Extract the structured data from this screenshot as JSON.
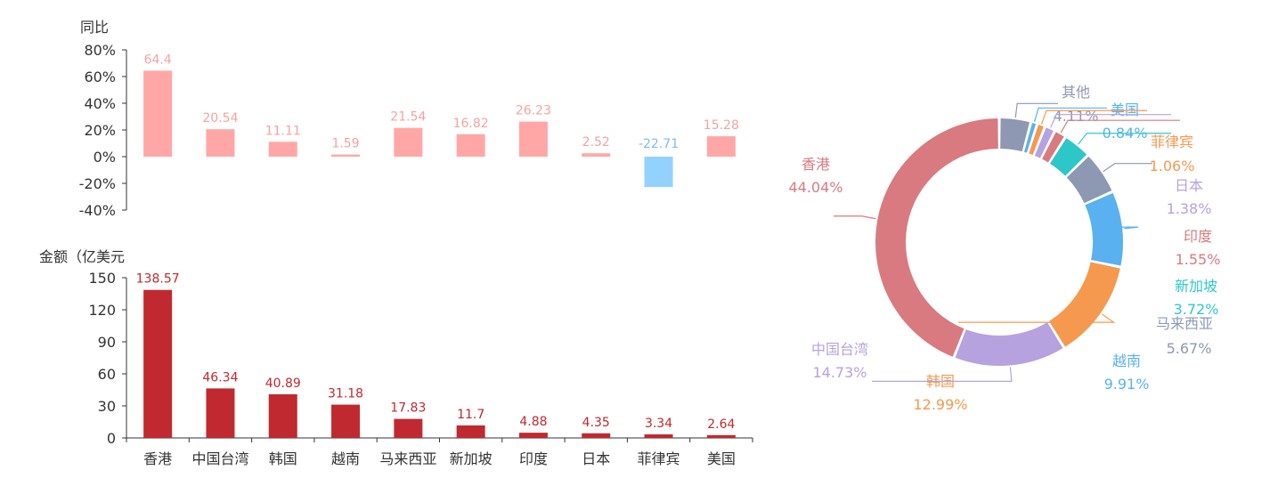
{
  "chart_data": [
    {
      "type": "bar",
      "ylabel": "同比",
      "ylim": [
        -40,
        80
      ],
      "y_ticks": [
        "80%",
        "60%",
        "40%",
        "20%",
        "0%",
        "-20%",
        "-40%"
      ],
      "categories": [
        "香港",
        "中国台湾",
        "韩国",
        "越南",
        "马来西亚",
        "新加坡",
        "印度",
        "日本",
        "菲律宾",
        "美国"
      ],
      "values": [
        64.4,
        20.54,
        11.11,
        1.59,
        21.54,
        16.82,
        26.23,
        2.52,
        -22.71,
        15.28
      ],
      "data_labels": [
        "64.4",
        "20.54",
        "11.11",
        "1.59",
        "21.54",
        "16.82",
        "26.23",
        "2.52",
        "-22.71",
        "15.28"
      ],
      "colors": {
        "positive": "#ffa7a7",
        "negative": "#93d2ff",
        "positive_label": "#f4a3a3",
        "negative_label": "#7dbbef"
      }
    },
    {
      "type": "bar",
      "ylabel": "金额（亿美元",
      "ylim": [
        0,
        150
      ],
      "y_ticks": [
        "150",
        "120",
        "90",
        "60",
        "30",
        "0"
      ],
      "categories": [
        "香港",
        "中国台湾",
        "韩国",
        "越南",
        "马来西亚",
        "新加坡",
        "印度",
        "日本",
        "菲律宾",
        "美国"
      ],
      "values": [
        138.57,
        46.34,
        40.89,
        31.18,
        17.83,
        11.7,
        4.88,
        4.35,
        3.34,
        2.64
      ],
      "data_labels": [
        "138.57",
        "46.34",
        "40.89",
        "31.18",
        "17.83",
        "11.7",
        "4.88",
        "4.35",
        "3.34",
        "2.64"
      ],
      "colors": {
        "bar": "#c0292f",
        "label": "#c0292f"
      }
    },
    {
      "type": "pie",
      "donut": true,
      "slices": [
        {
          "name": "其他",
          "value": 4.11,
          "label": "4.11%",
          "color": "#8e98b3"
        },
        {
          "name": "美国",
          "value": 0.84,
          "label": "0.84%",
          "color": "#5ab1ef"
        },
        {
          "name": "菲律宾",
          "value": 1.06,
          "label": "1.06%",
          "color": "#f5994e"
        },
        {
          "name": "日本",
          "value": 1.38,
          "label": "1.38%",
          "color": "#b6a2de"
        },
        {
          "name": "印度",
          "value": 1.55,
          "label": "1.55%",
          "color": "#d87a80"
        },
        {
          "name": "新加坡",
          "value": 3.72,
          "label": "3.72%",
          "color": "#2ec7c9"
        },
        {
          "name": "马来西亚",
          "value": 5.67,
          "label": "5.67%",
          "color": "#8d98b3"
        },
        {
          "name": "越南",
          "value": 9.91,
          "label": "9.91%",
          "color": "#5ab1ef"
        },
        {
          "name": "韩国",
          "value": 12.99,
          "label": "12.99%",
          "color": "#f5994e"
        },
        {
          "name": "中国台湾",
          "value": 14.73,
          "label": "14.73%",
          "color": "#b6a2de"
        },
        {
          "name": "香港",
          "value": 44.04,
          "label": "44.04%",
          "color": "#d87a80"
        }
      ]
    }
  ]
}
